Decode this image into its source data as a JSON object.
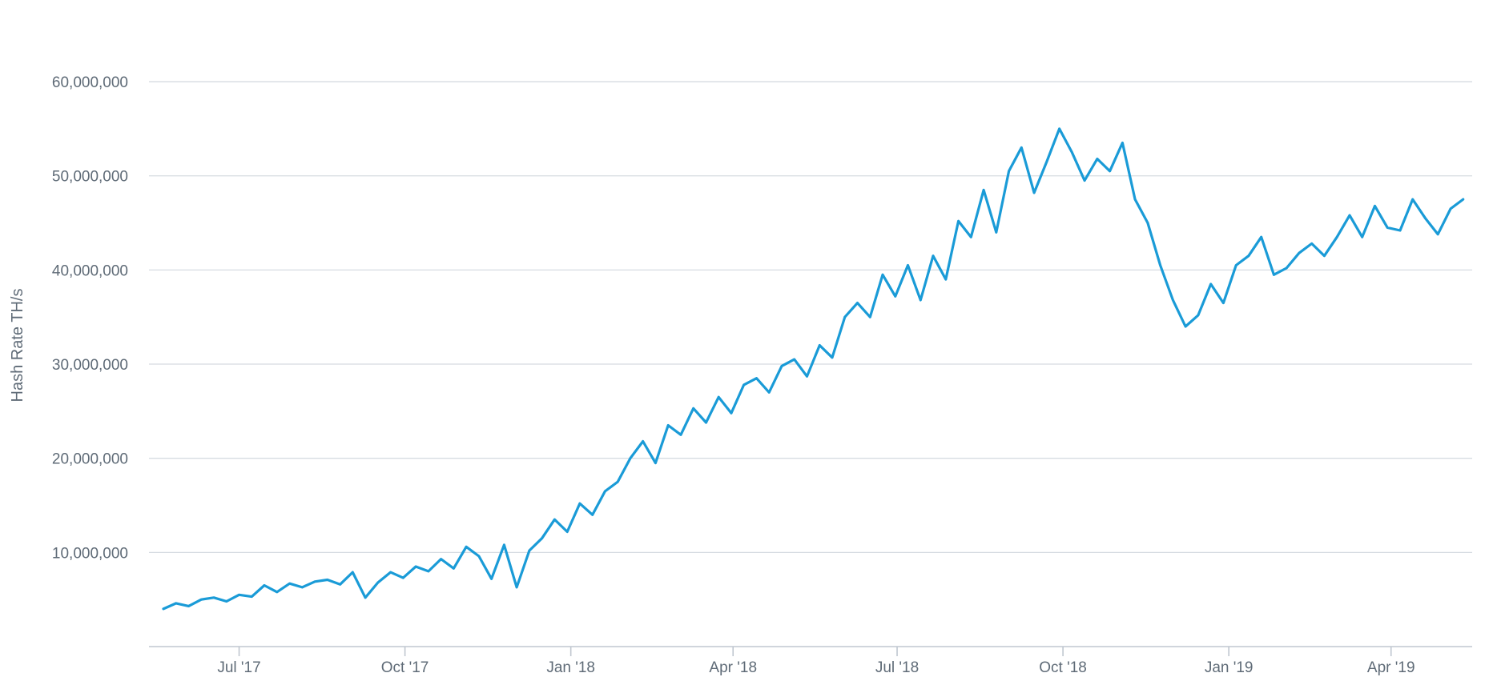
{
  "chart_data": {
    "type": "line",
    "title": "",
    "xlabel": "",
    "ylabel": "Hash Rate TH/s",
    "colors": {
      "series": "#1a9bd7",
      "grid": "#d6dbe1",
      "text": "#5f6b77"
    },
    "grid": true,
    "legend": "none",
    "xlim": [
      "2017-05-12",
      "2019-05-16"
    ],
    "ylim": [
      0,
      60000000
    ],
    "y_ticks": [
      {
        "value": 10000000,
        "label": "10,000,000"
      },
      {
        "value": 20000000,
        "label": "20,000,000"
      },
      {
        "value": 30000000,
        "label": "30,000,000"
      },
      {
        "value": 40000000,
        "label": "40,000,000"
      },
      {
        "value": 50000000,
        "label": "50,000,000"
      },
      {
        "value": 60000000,
        "label": "60,000,000"
      }
    ],
    "x_ticks": [
      {
        "date": "2017-07-01",
        "label": "Jul '17"
      },
      {
        "date": "2017-10-01",
        "label": "Oct '17"
      },
      {
        "date": "2018-01-01",
        "label": "Jan '18"
      },
      {
        "date": "2018-04-01",
        "label": "Apr '18"
      },
      {
        "date": "2018-07-01",
        "label": "Jul '18"
      },
      {
        "date": "2018-10-01",
        "label": "Oct '18"
      },
      {
        "date": "2019-01-01",
        "label": "Jan '19"
      },
      {
        "date": "2019-04-01",
        "label": "Apr '19"
      }
    ],
    "series": [
      {
        "x": [
          "2017-05-20",
          "2017-05-27",
          "2017-06-03",
          "2017-06-10",
          "2017-06-17",
          "2017-06-24",
          "2017-07-01",
          "2017-07-08",
          "2017-07-15",
          "2017-07-22",
          "2017-07-29",
          "2017-08-05",
          "2017-08-12",
          "2017-08-19",
          "2017-08-26",
          "2017-09-02",
          "2017-09-09",
          "2017-09-16",
          "2017-09-23",
          "2017-09-30",
          "2017-10-07",
          "2017-10-14",
          "2017-10-21",
          "2017-10-28",
          "2017-11-04",
          "2017-11-11",
          "2017-11-18",
          "2017-11-25",
          "2017-12-02",
          "2017-12-09",
          "2017-12-16",
          "2017-12-23",
          "2017-12-30",
          "2018-01-06",
          "2018-01-13",
          "2018-01-20",
          "2018-01-27",
          "2018-02-03",
          "2018-02-10",
          "2018-02-17",
          "2018-02-24",
          "2018-03-03",
          "2018-03-10",
          "2018-03-17",
          "2018-03-24",
          "2018-03-31",
          "2018-04-07",
          "2018-04-14",
          "2018-04-21",
          "2018-04-28",
          "2018-05-05",
          "2018-05-12",
          "2018-05-19",
          "2018-05-26",
          "2018-06-02",
          "2018-06-09",
          "2018-06-16",
          "2018-06-23",
          "2018-06-30",
          "2018-07-07",
          "2018-07-14",
          "2018-07-21",
          "2018-07-28",
          "2018-08-04",
          "2018-08-11",
          "2018-08-18",
          "2018-08-25",
          "2018-09-01",
          "2018-09-08",
          "2018-09-15",
          "2018-09-22",
          "2018-09-29",
          "2018-10-06",
          "2018-10-13",
          "2018-10-20",
          "2018-10-27",
          "2018-11-03",
          "2018-11-10",
          "2018-11-17",
          "2018-11-24",
          "2018-12-01",
          "2018-12-08",
          "2018-12-15",
          "2018-12-22",
          "2018-12-29",
          "2019-01-05",
          "2019-01-12",
          "2019-01-19",
          "2019-01-26",
          "2019-02-02",
          "2019-02-09",
          "2019-02-16",
          "2019-02-23",
          "2019-03-02",
          "2019-03-09",
          "2019-03-16",
          "2019-03-23",
          "2019-03-30",
          "2019-04-06",
          "2019-04-13",
          "2019-04-20",
          "2019-04-27",
          "2019-05-04",
          "2019-05-11"
        ],
        "values": [
          4000000,
          4600000,
          4300000,
          5000000,
          5200000,
          4800000,
          5500000,
          5300000,
          6500000,
          5800000,
          6700000,
          6300000,
          6900000,
          7100000,
          6600000,
          7900000,
          5200000,
          6800000,
          7900000,
          7300000,
          8500000,
          8000000,
          9300000,
          8300000,
          10600000,
          9600000,
          7200000,
          10800000,
          6300000,
          10200000,
          11500000,
          13500000,
          12200000,
          15200000,
          14000000,
          16500000,
          17500000,
          20000000,
          21800000,
          19500000,
          23500000,
          22500000,
          25300000,
          23800000,
          26500000,
          24800000,
          27800000,
          28500000,
          27000000,
          29800000,
          30500000,
          28700000,
          32000000,
          30700000,
          35000000,
          36500000,
          35000000,
          39500000,
          37200000,
          40500000,
          36800000,
          41500000,
          39000000,
          45200000,
          43500000,
          48500000,
          44000000,
          50500000,
          53000000,
          48200000,
          51500000,
          55000000,
          52500000,
          49500000,
          51800000,
          50500000,
          53500000,
          47500000,
          45000000,
          40500000,
          36800000,
          34000000,
          35200000,
          38500000,
          36500000,
          40500000,
          41500000,
          43500000,
          39500000,
          40200000,
          41800000,
          42800000,
          41500000,
          43500000,
          45800000,
          43500000,
          46800000,
          44500000,
          44200000,
          47500000,
          45500000,
          43800000,
          46500000,
          47500000
        ]
      }
    ]
  }
}
